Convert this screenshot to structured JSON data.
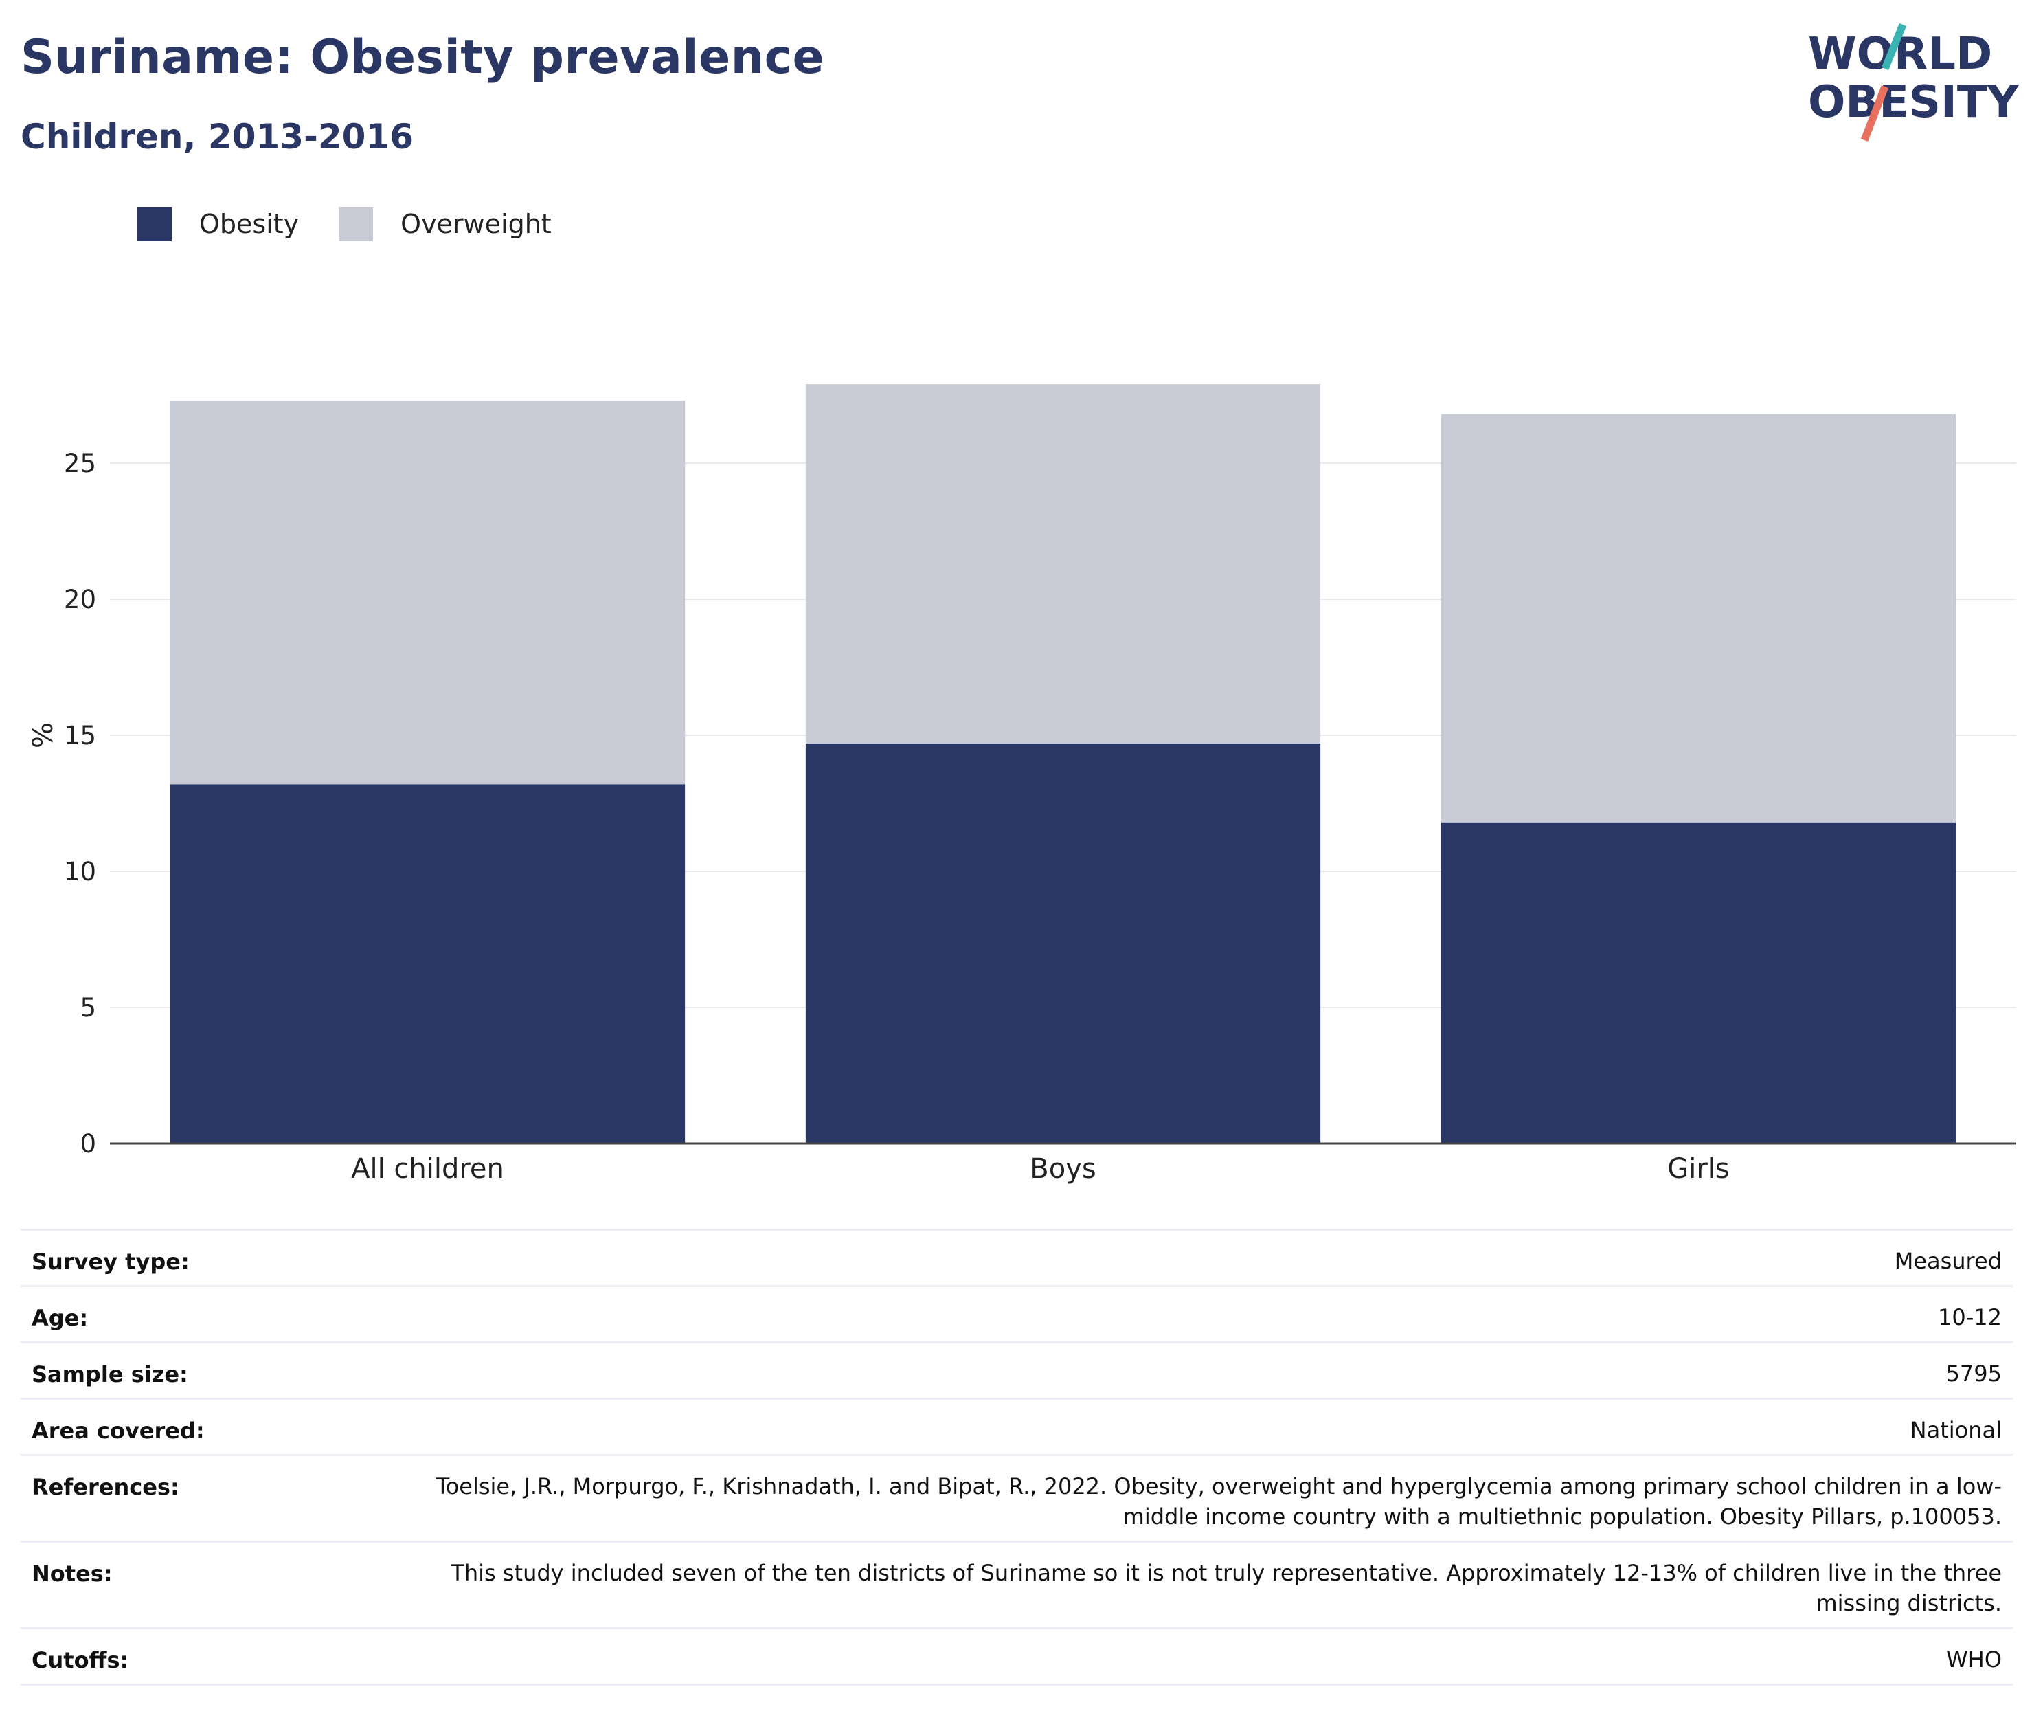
{
  "header": {
    "title": "Suriname: Obesity prevalence",
    "subtitle": "Children, 2013-2016"
  },
  "logo": {
    "line1": "WORLD",
    "line2": "OBESITY",
    "colors": {
      "navy": "#2a3664",
      "teal": "#3bb3b3",
      "coral": "#e8705f"
    }
  },
  "chart_data": {
    "type": "bar",
    "stacked": true,
    "categories": [
      "All children",
      "Boys",
      "Girls"
    ],
    "series": [
      {
        "name": "Obesity",
        "values": [
          13.2,
          14.7,
          11.8
        ],
        "color": "#2a3664"
      },
      {
        "name": "Overweight",
        "values": [
          14.1,
          13.2,
          15.0
        ],
        "color": "#c9cbd7"
      }
    ],
    "title": "",
    "xlabel": "",
    "ylabel": "%",
    "ylim": [
      0,
      30
    ],
    "yticks": [
      0,
      5,
      10,
      15,
      20,
      25
    ],
    "grid": true,
    "legend_position": "top-left"
  },
  "meta": [
    {
      "key": "Survey type:",
      "value": "Measured"
    },
    {
      "key": "Age:",
      "value": "10-12"
    },
    {
      "key": "Sample size:",
      "value": "5795"
    },
    {
      "key": "Area covered:",
      "value": "National"
    },
    {
      "key": "References:",
      "value": "Toelsie, J.R., Morpurgo, F., Krishnadath, I. and Bipat, R., 2022. Obesity, overweight and hyperglycemia among primary school children in a low-middle income country with a multiethnic population. Obesity Pillars, p.100053."
    },
    {
      "key": "Notes:",
      "value": "This study included seven of the ten districts of Suriname so it is not truly representative. Approximately 12-13% of children live in the three missing districts."
    },
    {
      "key": "Cutoffs:",
      "value": "WHO"
    }
  ]
}
